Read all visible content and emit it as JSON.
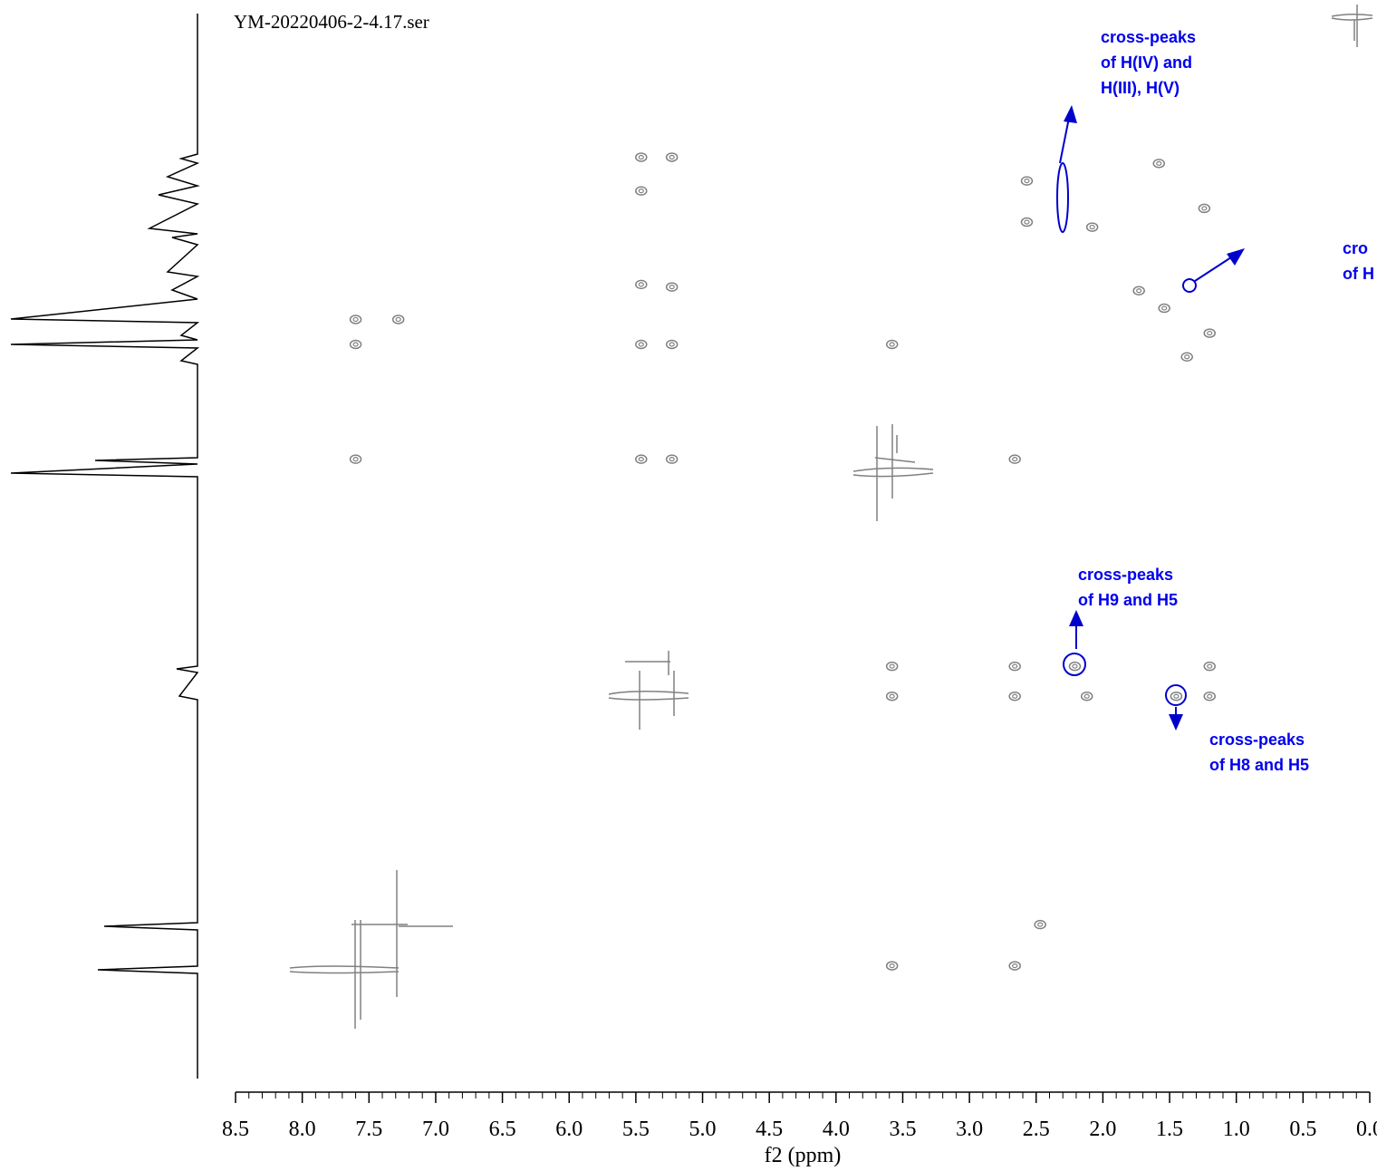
{
  "chart_data": {
    "type": "scatter",
    "title": "YM-20220406-2-4.17.ser",
    "x_label": "f2 (ppm)",
    "xlim": [
      8.5,
      0.0
    ],
    "xticks": [
      8.5,
      {
        "value": 8,
        "label": "8.0"
      },
      7.5,
      {
        "value": 7,
        "label": "7.0"
      },
      6.5,
      {
        "value": 6,
        "label": "6.0"
      },
      5.5,
      {
        "value": 5,
        "label": "5.0"
      },
      4.5,
      {
        "value": 4,
        "label": "4.0"
      },
      3.5,
      {
        "value": 3,
        "label": "3.0"
      },
      2.5,
      {
        "value": 2,
        "label": "2.0"
      },
      1.5,
      {
        "value": 1,
        "label": "1.0"
      },
      0.5,
      {
        "value": 0,
        "label": "0.0"
      }
    ],
    "ylim": [
      -0.17,
      8.51
    ],
    "color": "#808080",
    "x": [
      7.6,
      7.28,
      7.6,
      7.6,
      5.46,
      5.23,
      5.46,
      5.46,
      5.23,
      5.46,
      5.23,
      5.46,
      5.23,
      3.58,
      3.58,
      3.58,
      3.58,
      2.66,
      2.47,
      2.66,
      2.66,
      2.66,
      2.21,
      2.12,
      1.45,
      1.2,
      1.2,
      2.57,
      2.57,
      2.08,
      1.73,
      1.54,
      1.2,
      1.37,
      1.58,
      1.24
    ],
    "values": [
      2.39,
      2.39,
      2.59,
      3.51,
      1.09,
      1.09,
      1.36,
      2.11,
      2.13,
      2.59,
      2.59,
      3.51,
      3.51,
      2.59,
      5.17,
      5.41,
      7.57,
      7.57,
      7.24,
      3.51,
      5.17,
      5.41,
      5.17,
      5.41,
      5.41,
      5.17,
      5.41,
      1.28,
      1.61,
      1.65,
      2.16,
      2.3,
      2.5,
      2.69,
      1.14,
      1.5
    ],
    "annotations": [
      [
        "cross-peaks",
        "of H(IV) and",
        "H(III),  H(V)"
      ],
      [
        "cross-peaks",
        "of H9 and H5"
      ],
      [
        "cross-peaks",
        "of H8 and H5"
      ],
      [
        "cro",
        "of H"
      ]
    ]
  }
}
